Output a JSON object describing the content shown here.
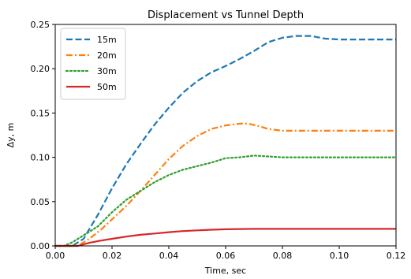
{
  "chart_data": {
    "type": "line",
    "title": "Displacement vs Tunnel Depth",
    "xlabel": "Time, sec",
    "ylabel": "Δy, m",
    "xlim": [
      0.0,
      0.12
    ],
    "ylim": [
      0.0,
      0.25
    ],
    "xticks": [
      "0.00",
      "0.02",
      "0.04",
      "0.06",
      "0.08",
      "0.10",
      "0.12"
    ],
    "yticks": [
      "0.00",
      "0.05",
      "0.10",
      "0.15",
      "0.20",
      "0.25"
    ],
    "grid": false,
    "legend_position": "top-left",
    "series": [
      {
        "name": "15m",
        "color": "#1f77b4",
        "style": "dashed",
        "x": [
          0.0,
          0.006,
          0.01,
          0.015,
          0.02,
          0.025,
          0.03,
          0.035,
          0.04,
          0.045,
          0.05,
          0.055,
          0.06,
          0.065,
          0.07,
          0.075,
          0.08,
          0.085,
          0.09,
          0.095,
          0.1,
          0.11,
          0.12
        ],
        "y": [
          0.0,
          0.0,
          0.008,
          0.035,
          0.065,
          0.092,
          0.115,
          0.137,
          0.156,
          0.173,
          0.186,
          0.196,
          0.203,
          0.211,
          0.22,
          0.23,
          0.235,
          0.237,
          0.237,
          0.234,
          0.233,
          0.233,
          0.233
        ]
      },
      {
        "name": "20m",
        "color": "#ff7f0e",
        "style": "dashdot",
        "x": [
          0.0,
          0.008,
          0.012,
          0.016,
          0.02,
          0.025,
          0.03,
          0.035,
          0.04,
          0.045,
          0.05,
          0.055,
          0.06,
          0.065,
          0.068,
          0.072,
          0.075,
          0.08,
          0.09,
          0.1,
          0.11,
          0.12
        ],
        "y": [
          0.0,
          0.0,
          0.008,
          0.018,
          0.03,
          0.045,
          0.062,
          0.08,
          0.098,
          0.113,
          0.124,
          0.132,
          0.136,
          0.138,
          0.138,
          0.135,
          0.132,
          0.13,
          0.13,
          0.13,
          0.13,
          0.13
        ]
      },
      {
        "name": "30m",
        "color": "#2ca02c",
        "style": "dotted",
        "x": [
          0.0,
          0.003,
          0.006,
          0.01,
          0.015,
          0.02,
          0.025,
          0.03,
          0.035,
          0.04,
          0.045,
          0.05,
          0.055,
          0.06,
          0.065,
          0.07,
          0.075,
          0.08,
          0.09,
          0.1,
          0.11,
          0.12
        ],
        "y": [
          0.0,
          0.0,
          0.004,
          0.012,
          0.022,
          0.038,
          0.052,
          0.062,
          0.072,
          0.08,
          0.086,
          0.09,
          0.094,
          0.099,
          0.1,
          0.102,
          0.101,
          0.1,
          0.1,
          0.1,
          0.1,
          0.1
        ]
      },
      {
        "name": "50m",
        "color": "#d62728",
        "style": "solid",
        "x": [
          0.0,
          0.008,
          0.012,
          0.016,
          0.02,
          0.025,
          0.03,
          0.035,
          0.04,
          0.045,
          0.05,
          0.055,
          0.06,
          0.07,
          0.08,
          0.09,
          0.1,
          0.11,
          0.12
        ],
        "y": [
          0.0,
          0.0,
          0.0035,
          0.006,
          0.008,
          0.0105,
          0.0125,
          0.014,
          0.0155,
          0.0167,
          0.0175,
          0.0182,
          0.0188,
          0.0192,
          0.0192,
          0.0192,
          0.0192,
          0.0192,
          0.0192
        ]
      }
    ]
  }
}
